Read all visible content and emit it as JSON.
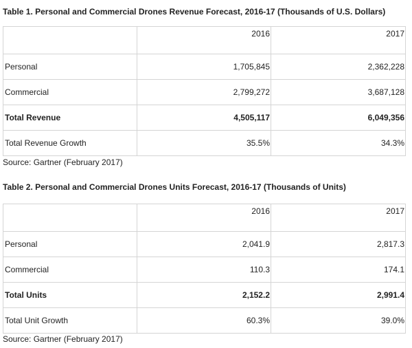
{
  "table1": {
    "title": "Table 1. Personal and Commercial Drones Revenue Forecast, 2016-17 (Thousands of U.S. Dollars)",
    "header": [
      "",
      "2016",
      "2017"
    ],
    "rows": [
      {
        "label": "Personal",
        "v2016": "1,705,845",
        "v2017": "2,362,228"
      },
      {
        "label": "Commercial",
        "v2016": "2,799,272",
        "v2017": "3,687,128"
      },
      {
        "label": "Total Revenue",
        "v2016": "4,505,117",
        "v2017": "6,049,356"
      },
      {
        "label": "Total Revenue Growth",
        "v2016": "35.5%",
        "v2017": "34.3%"
      }
    ],
    "source": "Source: Gartner (February 2017)"
  },
  "table2": {
    "title": "Table 2. Personal and Commercial Drones Units Forecast, 2016-17 (Thousands of Units)",
    "header": [
      "",
      "2016",
      "2017"
    ],
    "rows": [
      {
        "label": "Personal",
        "v2016": "2,041.9",
        "v2017": "2,817.3"
      },
      {
        "label": "Commercial",
        "v2016": "110.3",
        "v2017": "174.1"
      },
      {
        "label": "Total Units",
        "v2016": "2,152.2",
        "v2017": "2,991.4"
      },
      {
        "label": "Total Unit Growth",
        "v2016": "60.3%",
        "v2017": "39.0%"
      }
    ],
    "source": "Source: Gartner (February 2017)"
  }
}
